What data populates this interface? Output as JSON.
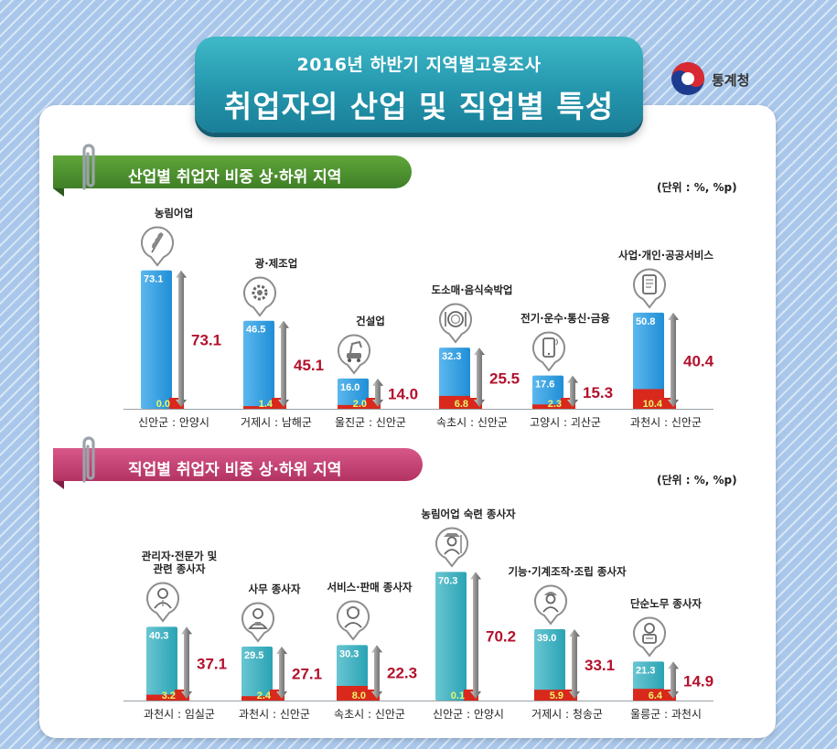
{
  "header": {
    "subtitle": "2016년 하반기 지역별고용조사",
    "title": "취업자의 산업 및 직업별 특성",
    "logo_text": "통계청"
  },
  "colors": {
    "industry_header": "#4a8a2f",
    "occupation_header": "#c0436e",
    "industry_bar": "#1f8ed6",
    "occupation_bar": "#2aa3b4",
    "low_bar": "#d9281c",
    "diff_text": "#b3112c",
    "top_value_text": "#ffffff",
    "low_value_text": "#e9f56a"
  },
  "chart_data": [
    {
      "type": "bar",
      "title": "산업별 취업자 비중 상·하위 지역",
      "unit": "(단위 : %, %p)",
      "categories": [
        "농림어업",
        "광·제조업",
        "건설업",
        "도소매·음식숙박업",
        "전기·운수·통신·금융",
        "사업·개인·공공서비스"
      ],
      "icons": [
        "wheat-icon",
        "gear-icon",
        "excavator-icon",
        "plate-icon",
        "phone-icon",
        "document-icon"
      ],
      "regions": [
        "신안군 : 안양시",
        "거제시 : 남해군",
        "울진군 : 신안군",
        "속초시 : 신안군",
        "고양시 : 괴산군",
        "과천시 : 신안군"
      ],
      "series": [
        {
          "name": "상위",
          "values": [
            73.1,
            46.5,
            16.0,
            32.3,
            17.6,
            50.8
          ]
        },
        {
          "name": "하위",
          "values": [
            0.0,
            1.4,
            2.0,
            6.8,
            2.3,
            10.4
          ]
        }
      ],
      "differences": [
        73.1,
        45.1,
        14.0,
        25.5,
        15.3,
        40.4
      ]
    },
    {
      "type": "bar",
      "title": "직업별 취업자 비중 상·하위 지역",
      "unit": "(단위 : %, %p)",
      "categories": [
        "관리자·전문가 및\n관련 종사자",
        "사무 종사자",
        "서비스·판매 종사자",
        "농림어업 숙련 종사자",
        "기능·기계조작·조립 종사자",
        "단순노무 종사자"
      ],
      "icons": [
        "manager-icon",
        "office-worker-icon",
        "service-worker-icon",
        "farmer-icon",
        "technician-icon",
        "laborer-icon"
      ],
      "regions": [
        "과천시 : 임실군",
        "과천시 : 신안군",
        "속초시 : 신안군",
        "신안군 : 안양시",
        "거제시 : 청송군",
        "울릉군 : 과천시"
      ],
      "series": [
        {
          "name": "상위",
          "values": [
            40.3,
            29.5,
            30.3,
            70.3,
            39.0,
            21.3
          ]
        },
        {
          "name": "하위",
          "values": [
            3.2,
            2.4,
            8.0,
            0.1,
            5.9,
            6.4
          ]
        }
      ],
      "differences": [
        37.1,
        27.1,
        22.3,
        70.2,
        33.1,
        14.9
      ]
    }
  ]
}
